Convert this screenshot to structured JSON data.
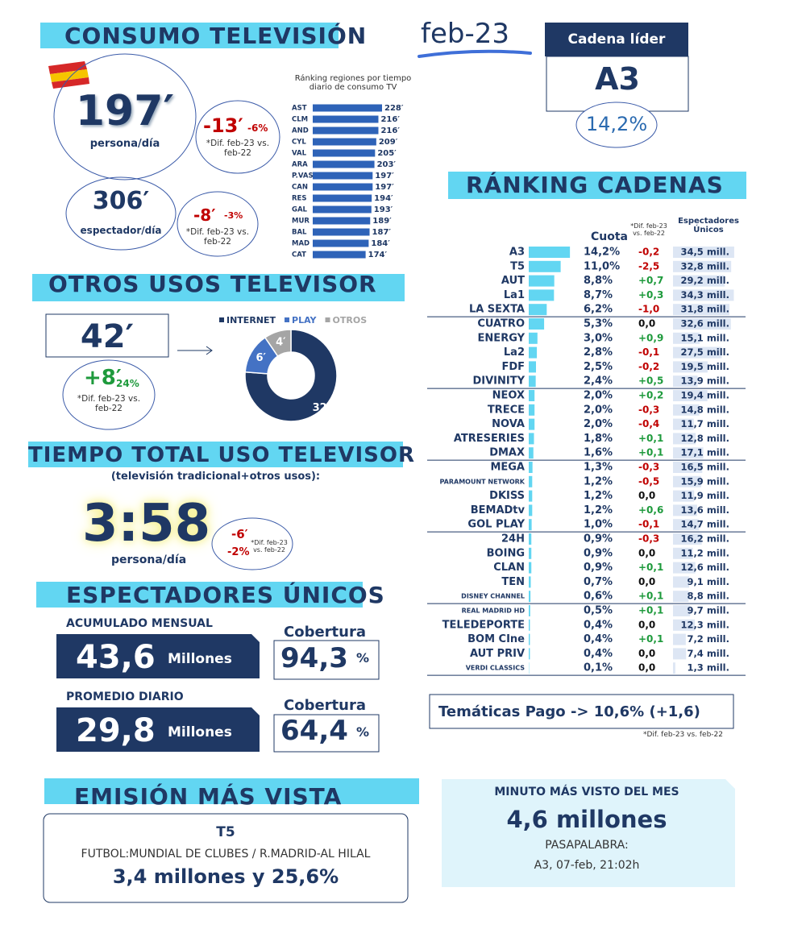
{
  "header": {
    "title": "CONSUMO TELEVISIÓN",
    "period": "feb-23",
    "leader_label": "Cadena líder",
    "leader": "A3",
    "leader_share": "14,2%"
  },
  "consumo": {
    "person": {
      "value": "197′",
      "label": "persona/día",
      "diff": "-13′",
      "pct": "-6%",
      "note": "*Dif. feb-23 vs. feb-22"
    },
    "spectator": {
      "value": "306′",
      "label": "espectador/día",
      "diff": "-8′",
      "pct": "-3%",
      "note": "*Dif. feb-23 vs. feb-22"
    },
    "regions": {
      "title": "Ránking regiones por tiempo diario de consumo TV",
      "color": "#2e63b8",
      "items": [
        {
          "name": "AST",
          "value": 228,
          "value_label": "228′"
        },
        {
          "name": "CLM",
          "value": 216,
          "value_label": "216′"
        },
        {
          "name": "AND",
          "value": 216,
          "value_label": "216′"
        },
        {
          "name": "CYL",
          "value": 209,
          "value_label": "209′"
        },
        {
          "name": "VAL",
          "value": 205,
          "value_label": "205′"
        },
        {
          "name": "ARA",
          "value": 203,
          "value_label": "203′"
        },
        {
          "name": "P.VAS",
          "value": 197,
          "value_label": "197′"
        },
        {
          "name": "CAN",
          "value": 197,
          "value_label": "197′"
        },
        {
          "name": "RES",
          "value": 194,
          "value_label": "194′"
        },
        {
          "name": "GAL",
          "value": 193,
          "value_label": "193′"
        },
        {
          "name": "MUR",
          "value": 189,
          "value_label": "189′"
        },
        {
          "name": "BAL",
          "value": 187,
          "value_label": "187′"
        },
        {
          "name": "MAD",
          "value": 184,
          "value_label": "184′"
        },
        {
          "name": "CAT",
          "value": 174,
          "value_label": "174′"
        }
      ]
    }
  },
  "otros_usos": {
    "title": "OTROS USOS TELEVISOR",
    "value": "42′",
    "diff": "+8′",
    "pct": "24%",
    "note": "*Dif. feb-23 vs. feb-22",
    "segments": [
      {
        "name": "INTERNET",
        "value": 32,
        "value_label": "32′",
        "color": "#1f3864"
      },
      {
        "name": "PLAY",
        "value": 6,
        "value_label": "6′",
        "color": "#4472c4"
      },
      {
        "name": "OTROS",
        "value": 4,
        "value_label": "4′",
        "color": "#a5a5a5"
      }
    ]
  },
  "tiempo_total": {
    "title": "TIEMPO TOTAL USO TELEVISOR",
    "subtitle": "(televisión tradicional+otros usos):",
    "value": "3:58",
    "label": "persona/día",
    "diff": "-6′",
    "pct": "-2%",
    "note": "*Dif. feb-23 vs. feb-22"
  },
  "espectadores": {
    "title": "ESPECTADORES ÚNICOS",
    "monthly": {
      "label": "ACUMULADO MENSUAL",
      "value": "43,6",
      "unit": "Millones",
      "coverage_label": "Cobertura",
      "coverage": "94,3",
      "coverage_unit": "%"
    },
    "daily": {
      "label": "PROMEDIO DIARIO",
      "value": "29,8",
      "unit": "Millones",
      "coverage_label": "Cobertura",
      "coverage": "64,4",
      "coverage_unit": "%"
    }
  },
  "emision": {
    "title": "EMISIÓN MÁS VISTA",
    "channel": "T5",
    "program": "FUTBOL:MUNDIAL DE CLUBES / R.MADRID-AL HILAL",
    "result": "3,4 millones y 25,6%"
  },
  "minuto": {
    "title": "MINUTO MÁS VISTO DEL MES",
    "value": "4,6 millones",
    "program": "PASAPALABRA:",
    "detail": "A3, 07-feb, 21:02h"
  },
  "ranking": {
    "title": "RÁNKING CADENAS",
    "headers": {
      "share": "Cuota",
      "diff": "*Dif. feb-23 vs. feb-22",
      "viewers": "Espectadores Únicos"
    },
    "rows": [
      {
        "name": "A3",
        "share": 14.2,
        "share_label": "14,2%",
        "diff": -0.2,
        "diff_label": "-0,2",
        "viewers": 34.5,
        "viewers_label": "34,5 mill."
      },
      {
        "name": "T5",
        "share": 11.0,
        "share_label": "11,0%",
        "diff": -2.5,
        "diff_label": "-2,5",
        "viewers": 32.8,
        "viewers_label": "32,8 mill."
      },
      {
        "name": "AUT",
        "share": 8.8,
        "share_label": "8,8%",
        "diff": 0.7,
        "diff_label": "+0,7",
        "viewers": 29.2,
        "viewers_label": "29,2 mill."
      },
      {
        "name": "La1",
        "share": 8.7,
        "share_label": "8,7%",
        "diff": 0.3,
        "diff_label": "+0,3",
        "viewers": 34.3,
        "viewers_label": "34,3 mill."
      },
      {
        "name": "LA SEXTA",
        "share": 6.2,
        "share_label": "6,2%",
        "diff": -1.0,
        "diff_label": "-1,0",
        "viewers": 31.8,
        "viewers_label": "31,8 mill."
      },
      {
        "name": "CUATRO",
        "share": 5.3,
        "share_label": "5,3%",
        "diff": 0.0,
        "diff_label": "0,0",
        "viewers": 32.6,
        "viewers_label": "32,6 mill."
      },
      {
        "name": "ENERGY",
        "share": 3.0,
        "share_label": "3,0%",
        "diff": 0.9,
        "diff_label": "+0,9",
        "viewers": 15.1,
        "viewers_label": "15,1 mill."
      },
      {
        "name": "La2",
        "share": 2.8,
        "share_label": "2,8%",
        "diff": -0.1,
        "diff_label": "-0,1",
        "viewers": 27.5,
        "viewers_label": "27,5 mill."
      },
      {
        "name": "FDF",
        "share": 2.5,
        "share_label": "2,5%",
        "diff": -0.2,
        "diff_label": "-0,2",
        "viewers": 19.5,
        "viewers_label": "19,5 mill."
      },
      {
        "name": "DIVINITY",
        "share": 2.4,
        "share_label": "2,4%",
        "diff": 0.5,
        "diff_label": "+0,5",
        "viewers": 13.9,
        "viewers_label": "13,9 mill."
      },
      {
        "name": "NEOX",
        "share": 2.0,
        "share_label": "2,0%",
        "diff": 0.2,
        "diff_label": "+0,2",
        "viewers": 19.4,
        "viewers_label": "19,4 mill."
      },
      {
        "name": "TRECE",
        "share": 2.0,
        "share_label": "2,0%",
        "diff": -0.3,
        "diff_label": "-0,3",
        "viewers": 14.8,
        "viewers_label": "14,8 mill."
      },
      {
        "name": "NOVA",
        "share": 2.0,
        "share_label": "2,0%",
        "diff": -0.4,
        "diff_label": "-0,4",
        "viewers": 11.7,
        "viewers_label": "11,7 mill."
      },
      {
        "name": "ATRESERIES",
        "share": 1.8,
        "share_label": "1,8%",
        "diff": 0.1,
        "diff_label": "+0,1",
        "viewers": 12.8,
        "viewers_label": "12,8 mill."
      },
      {
        "name": "DMAX",
        "share": 1.6,
        "share_label": "1,6%",
        "diff": 0.1,
        "diff_label": "+0,1",
        "viewers": 17.1,
        "viewers_label": "17,1 mill."
      },
      {
        "name": "MEGA",
        "share": 1.3,
        "share_label": "1,3%",
        "diff": -0.3,
        "diff_label": "-0,3",
        "viewers": 16.5,
        "viewers_label": "16,5 mill."
      },
      {
        "name": "PARAMOUNT NETWORK",
        "share": 1.2,
        "share_label": "1,2%",
        "diff": -0.5,
        "diff_label": "-0,5",
        "viewers": 15.9,
        "viewers_label": "15,9 mill."
      },
      {
        "name": "DKISS",
        "share": 1.2,
        "share_label": "1,2%",
        "diff": 0.0,
        "diff_label": "0,0",
        "viewers": 11.9,
        "viewers_label": "11,9 mill."
      },
      {
        "name": "BEMADtv",
        "share": 1.2,
        "share_label": "1,2%",
        "diff": 0.6,
        "diff_label": "+0,6",
        "viewers": 13.6,
        "viewers_label": "13,6 mill."
      },
      {
        "name": "GOL PLAY",
        "share": 1.0,
        "share_label": "1,0%",
        "diff": -0.1,
        "diff_label": "-0,1",
        "viewers": 14.7,
        "viewers_label": "14,7 mill."
      },
      {
        "name": "24H",
        "share": 0.9,
        "share_label": "0,9%",
        "diff": -0.3,
        "diff_label": "-0,3",
        "viewers": 16.2,
        "viewers_label": "16,2 mill."
      },
      {
        "name": "BOING",
        "share": 0.9,
        "share_label": "0,9%",
        "diff": 0.0,
        "diff_label": "0,0",
        "viewers": 11.2,
        "viewers_label": "11,2 mill."
      },
      {
        "name": "CLAN",
        "share": 0.9,
        "share_label": "0,9%",
        "diff": 0.1,
        "diff_label": "+0,1",
        "viewers": 12.6,
        "viewers_label": "12,6 mill."
      },
      {
        "name": "TEN",
        "share": 0.7,
        "share_label": "0,7%",
        "diff": 0.0,
        "diff_label": "0,0",
        "viewers": 9.1,
        "viewers_label": "9,1 mill."
      },
      {
        "name": "DISNEY CHANNEL",
        "share": 0.6,
        "share_label": "0,6%",
        "diff": 0.1,
        "diff_label": "+0,1",
        "viewers": 8.8,
        "viewers_label": "8,8 mill."
      },
      {
        "name": "REAL MADRID HD",
        "share": 0.5,
        "share_label": "0,5%",
        "diff": 0.1,
        "diff_label": "+0,1",
        "viewers": 9.7,
        "viewers_label": "9,7 mill."
      },
      {
        "name": "TELEDEPORTE",
        "share": 0.4,
        "share_label": "0,4%",
        "diff": 0.0,
        "diff_label": "0,0",
        "viewers": 12.3,
        "viewers_label": "12,3 mill."
      },
      {
        "name": "BOM CIne",
        "share": 0.4,
        "share_label": "0,4%",
        "diff": 0.1,
        "diff_label": "+0,1",
        "viewers": 7.2,
        "viewers_label": "7,2 mill."
      },
      {
        "name": "AUT PRIV",
        "share": 0.4,
        "share_label": "0,4%",
        "diff": 0.0,
        "diff_label": "0,0",
        "viewers": 7.4,
        "viewers_label": "7,4 mill."
      },
      {
        "name": "VERDI CLASSICS",
        "share": 0.1,
        "share_label": "0,1%",
        "diff": 0.0,
        "diff_label": "0,0",
        "viewers": 1.3,
        "viewers_label": "1,3 mill."
      }
    ],
    "tematicas": "Temáticas Pago -> 10,6% (+1,6)",
    "footnote": "*Dif. feb-23 vs. feb-22"
  }
}
